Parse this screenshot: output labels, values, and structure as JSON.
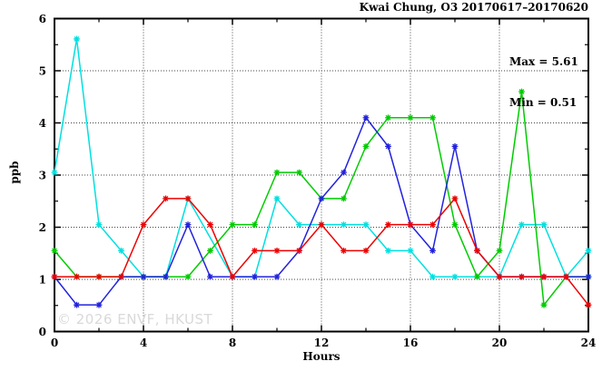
{
  "chart_data": {
    "type": "line",
    "title": "Kwai Chung, O3 20170617–20170620",
    "xlabel": "Hours",
    "ylabel": "ppb",
    "xlim": [
      0,
      24
    ],
    "ylim": [
      0,
      6
    ],
    "x_major_ticks": [
      0,
      4,
      8,
      12,
      16,
      20,
      24
    ],
    "x_minor_step": 2,
    "y_major_ticks": [
      0,
      1,
      2,
      3,
      4,
      5,
      6
    ],
    "y_minor_step": 0.5,
    "grid": {
      "x_lines": [
        4,
        8,
        12,
        16,
        20
      ],
      "y_lines": [
        1,
        2,
        3,
        4,
        5
      ],
      "style": "dotted"
    },
    "annotations": {
      "max_label": "Max = 5.61",
      "min_label": "Min = 0.51"
    },
    "watermark": "© 2026 ENVF, HKUST",
    "x": [
      0,
      1,
      2,
      3,
      4,
      5,
      6,
      7,
      8,
      9,
      10,
      11,
      12,
      13,
      14,
      15,
      16,
      17,
      18,
      19,
      20,
      21,
      22,
      23,
      24
    ],
    "series": [
      {
        "name": "series-cyan",
        "color": "#00e0e0",
        "values": [
          3.05,
          5.61,
          2.05,
          1.55,
          1.05,
          1.05,
          2.55,
          1.8,
          1.05,
          1.05,
          2.55,
          2.05,
          2.05,
          2.05,
          2.05,
          1.55,
          1.55,
          1.05,
          1.05,
          1.05,
          1.05,
          2.05,
          2.05,
          1.05,
          1.55
        ],
        "no_marker_at": [
          7
        ]
      },
      {
        "name": "series-green",
        "color": "#00cc00",
        "values": [
          1.55,
          1.05,
          1.05,
          1.05,
          1.05,
          1.05,
          1.05,
          1.55,
          2.05,
          2.05,
          3.05,
          3.05,
          2.55,
          2.55,
          3.55,
          4.1,
          4.1,
          4.1,
          2.05,
          1.05,
          1.55,
          4.6,
          0.51,
          1.05,
          1.05
        ],
        "no_marker_at": []
      },
      {
        "name": "series-blue",
        "color": "#2222dd",
        "values": [
          1.05,
          0.51,
          0.51,
          1.05,
          1.05,
          1.05,
          2.05,
          1.05,
          1.05,
          1.05,
          1.05,
          1.55,
          2.55,
          3.05,
          4.1,
          3.55,
          2.05,
          1.55,
          3.55,
          1.55,
          1.05,
          1.05,
          1.05,
          1.05,
          1.05
        ],
        "no_marker_at": []
      },
      {
        "name": "series-red",
        "color": "#ee0000",
        "values": [
          1.05,
          1.05,
          1.05,
          1.05,
          2.05,
          2.55,
          2.55,
          2.05,
          1.05,
          1.55,
          1.55,
          1.55,
          2.05,
          1.55,
          1.55,
          2.05,
          2.05,
          2.05,
          2.55,
          1.55,
          1.05,
          1.05,
          1.05,
          1.05,
          0.51
        ],
        "no_marker_at": []
      }
    ]
  }
}
